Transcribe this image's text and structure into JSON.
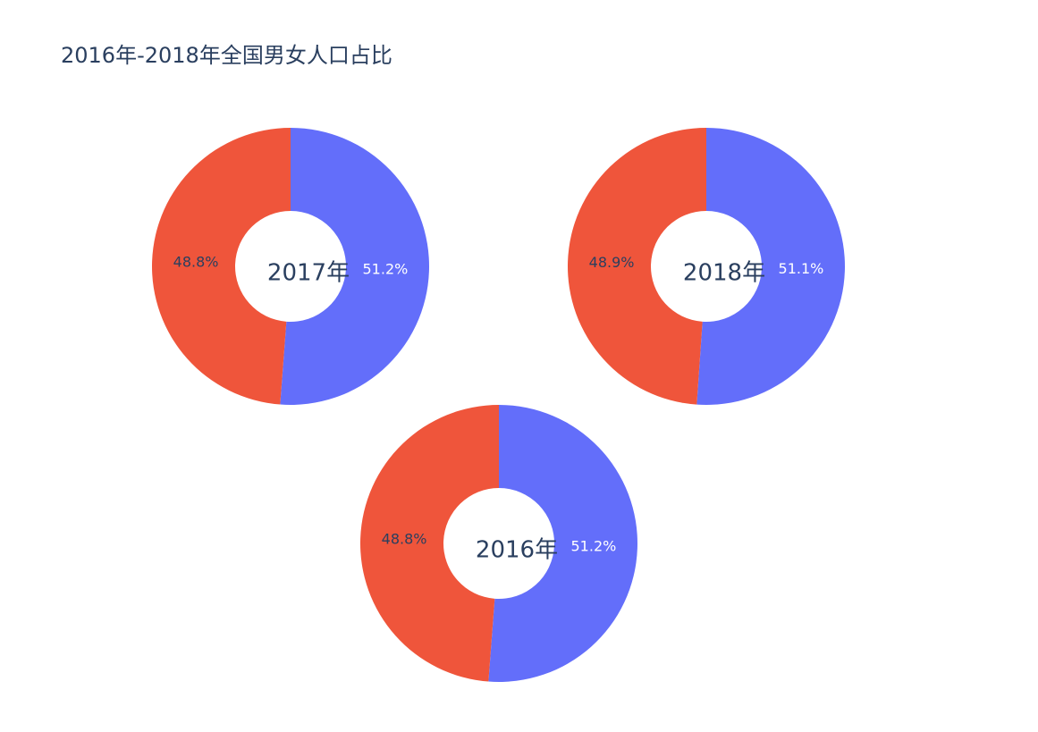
{
  "title": "2016年-2018年全国男女人口占比",
  "colors": {
    "series_a": "#636efa",
    "series_b": "#ef553b",
    "label_on_a": "#ffffff",
    "label_on_b": "#2a3f5f",
    "center_text": "#2a3f5f"
  },
  "chart_data": [
    {
      "type": "pie",
      "hole_label": "2017年",
      "values": [
        51.2,
        48.8
      ],
      "labels": [
        "51.2%",
        "48.8%"
      ]
    },
    {
      "type": "pie",
      "hole_label": "2018年",
      "values": [
        51.1,
        48.9
      ],
      "labels": [
        "51.1%",
        "48.9%"
      ]
    },
    {
      "type": "pie",
      "hole_label": "2016年",
      "values": [
        51.2,
        48.8
      ],
      "labels": [
        "51.2%",
        "48.8%"
      ]
    }
  ]
}
